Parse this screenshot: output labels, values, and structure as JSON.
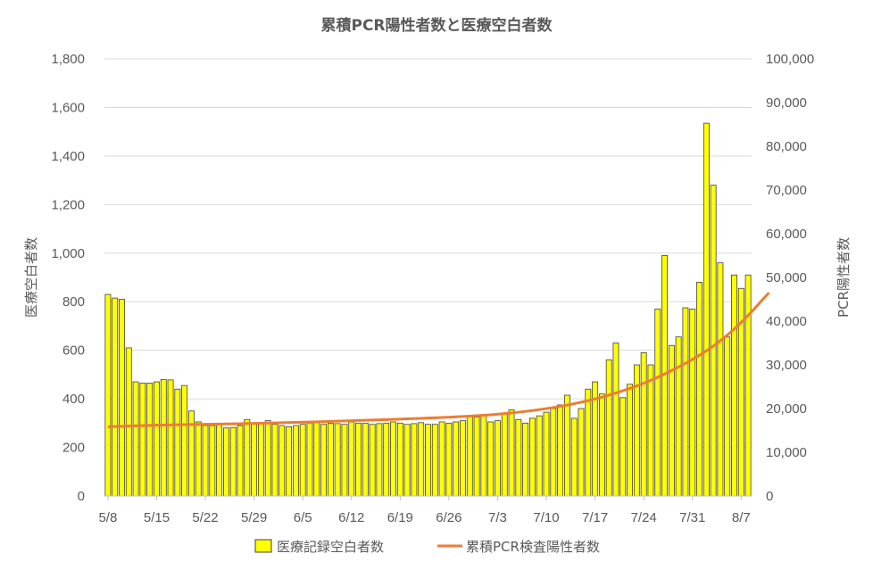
{
  "chart_data": {
    "type": "bar+line",
    "title": "累積PCR陽性者数と医療空白者数",
    "ylabel": "医療空白者数",
    "ylabel_right": "PCR陽性者数",
    "ylim": [
      0,
      1800
    ],
    "ylim_right": [
      0,
      100000
    ],
    "yticks": [
      "0",
      "200",
      "400",
      "600",
      "800",
      "1,000",
      "1,200",
      "1,400",
      "1,600",
      "1,800"
    ],
    "yticks_right": [
      "0",
      "10,000",
      "20,000",
      "30,000",
      "40,000",
      "50,000",
      "60,000",
      "70,000",
      "80,000",
      "90,000",
      "100,000"
    ],
    "x_start": "5/8",
    "x_tick_labels": [
      "5/8",
      "5/15",
      "5/22",
      "5/29",
      "6/5",
      "6/12",
      "6/19",
      "6/26",
      "7/3",
      "7/10",
      "7/17",
      "7/24",
      "7/31",
      "8/7"
    ],
    "grid": true,
    "legend_position": "bottom",
    "series": [
      {
        "name": "医療記録空白者数",
        "kind": "bar",
        "axis": "left",
        "color": "#ffff00",
        "edge": "#404040",
        "values": [
          830,
          815,
          810,
          610,
          470,
          465,
          465,
          470,
          480,
          478,
          440,
          455,
          350,
          305,
          290,
          290,
          295,
          280,
          282,
          290,
          315,
          300,
          300,
          310,
          295,
          290,
          285,
          290,
          295,
          300,
          305,
          295,
          300,
          298,
          295,
          305,
          300,
          300,
          295,
          298,
          300,
          305,
          300,
          295,
          298,
          302,
          295,
          295,
          305,
          300,
          305,
          310,
          330,
          325,
          330,
          305,
          310,
          340,
          355,
          315,
          300,
          320,
          330,
          345,
          360,
          375,
          415,
          320,
          360,
          440,
          470,
          420,
          560,
          630,
          405,
          460,
          540,
          590,
          540,
          770,
          990,
          620,
          655,
          775,
          770,
          880,
          1535,
          1280,
          960,
          655,
          910,
          855,
          910
        ]
      },
      {
        "name": "累積PCR検査陽性者数",
        "kind": "line",
        "axis": "right",
        "color": "#ed7d31",
        "values": [
          15800,
          15900,
          15950,
          16000,
          16050,
          16100,
          16150,
          16200,
          16230,
          16260,
          16290,
          16320,
          16350,
          16380,
          16400,
          16430,
          16450,
          16480,
          16510,
          16540,
          16570,
          16600,
          16640,
          16680,
          16720,
          16760,
          16800,
          16840,
          16880,
          16920,
          16970,
          17020,
          17070,
          17120,
          17170,
          17220,
          17270,
          17320,
          17370,
          17420,
          17470,
          17520,
          17580,
          17640,
          17700,
          17760,
          17820,
          17880,
          17950,
          18020,
          18100,
          18180,
          18270,
          18360,
          18460,
          18570,
          18700,
          18850,
          19000,
          19170,
          19350,
          19550,
          19760,
          19990,
          20240,
          20510,
          20800,
          21110,
          21450,
          21810,
          22200,
          22620,
          23070,
          23550,
          24060,
          24600,
          25180,
          25800,
          26460,
          27160,
          27900,
          28680,
          29500,
          30360,
          31260,
          32200,
          33200,
          34300,
          35500,
          36800,
          38200,
          39700,
          41300,
          43000,
          44800,
          46500
        ]
      }
    ]
  }
}
